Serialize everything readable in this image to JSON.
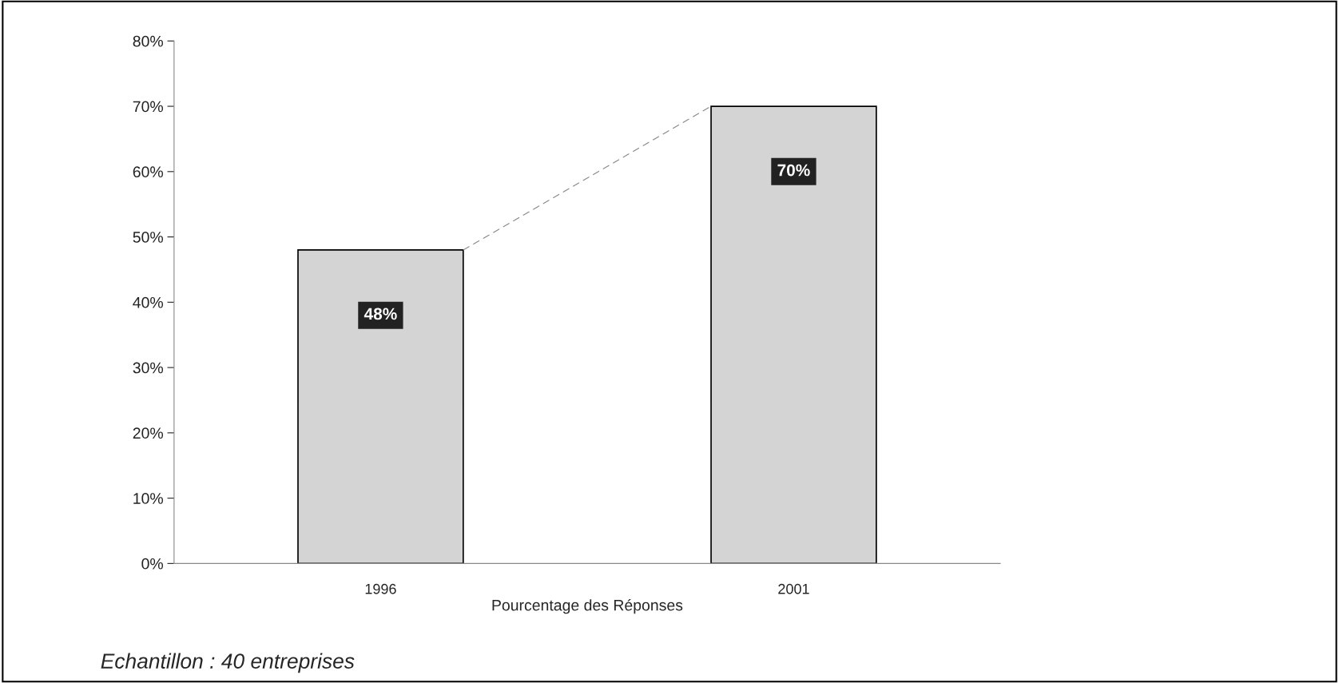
{
  "chart_data": {
    "type": "bar",
    "categories": [
      "1996",
      "2001"
    ],
    "values": [
      48,
      70
    ],
    "color": "#d4d4d4",
    "value_labels": [
      "48%",
      "70%"
    ],
    "ylim": [
      0,
      80
    ],
    "yticks": [
      {
        "value": 0,
        "label": "0%"
      },
      {
        "value": 10,
        "label": "10%"
      },
      {
        "value": 20,
        "label": "20%"
      },
      {
        "value": 30,
        "label": "30%"
      },
      {
        "value": 40,
        "label": "40%"
      },
      {
        "value": 50,
        "label": "50%"
      },
      {
        "value": 60,
        "label": "60%"
      },
      {
        "value": 70,
        "label": "70%"
      },
      {
        "value": 80,
        "label": "80%"
      }
    ],
    "xlabel": "Pourcentage des Réponses",
    "annotations": [
      "Echantillon : 40 entreprises"
    ],
    "grid": false,
    "legend": false
  }
}
